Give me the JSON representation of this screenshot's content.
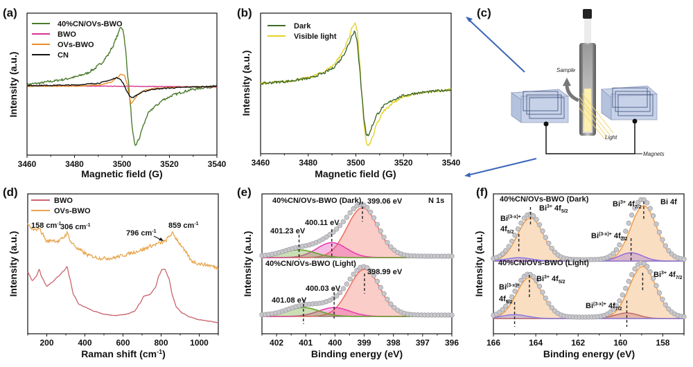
{
  "figure": {
    "panels": [
      "(a)",
      "(b)",
      "(c)",
      "(d)",
      "(e)",
      "(f)"
    ]
  },
  "chart_data": [
    {
      "id": "a",
      "type": "line",
      "panel_label": "(a)",
      "title": "",
      "xlabel": "Magnetic field (G)",
      "ylabel": "Intensity (a.u.)",
      "xlim": [
        3460,
        3540
      ],
      "ylim": [
        -1.15,
        1.2
      ],
      "xticks": [
        3460,
        3480,
        3500,
        3520,
        3540
      ],
      "grid": false,
      "legend_position": "top-left",
      "series": [
        {
          "name": "40%CN/OVs-BWO",
          "color": "#4a7a2c",
          "x": [
            3460,
            3465,
            3470,
            3475,
            3480,
            3485,
            3488,
            3491,
            3494,
            3496,
            3498,
            3499.5,
            3500.5,
            3501.5,
            3502.5,
            3503.5,
            3504.5,
            3505.5,
            3507,
            3509,
            3511,
            3514,
            3518,
            3522,
            3526,
            3530,
            3535,
            3540
          ],
          "y": [
            0.02,
            0.04,
            0.07,
            0.1,
            0.14,
            0.2,
            0.27,
            0.36,
            0.5,
            0.64,
            0.82,
            0.98,
            0.92,
            0.6,
            0.15,
            -0.3,
            -0.78,
            -1.0,
            -0.9,
            -0.66,
            -0.46,
            -0.34,
            -0.22,
            -0.15,
            -0.1,
            -0.06,
            -0.03,
            -0.01
          ],
          "noise": 0.02
        },
        {
          "name": "BWO",
          "color": "#d6338c",
          "x": [
            3460,
            3500,
            3540
          ],
          "y": [
            0.0,
            -0.01,
            -0.02
          ],
          "noise": 0.004
        },
        {
          "name": "OVs-BWO",
          "color": "#e8902a",
          "x": [
            3460,
            3480,
            3490,
            3495,
            3498,
            3499.5,
            3501,
            3502,
            3503,
            3503.8,
            3505,
            3507,
            3510,
            3515,
            3520,
            3530,
            3540
          ],
          "y": [
            -0.01,
            -0.01,
            0.01,
            0.05,
            0.13,
            0.19,
            0.17,
            0.05,
            -0.15,
            -0.3,
            -0.24,
            -0.13,
            -0.07,
            -0.04,
            -0.03,
            -0.02,
            -0.01
          ],
          "noise": 0.006
        },
        {
          "name": "CN",
          "color": "#111111",
          "x": [
            3460,
            3480,
            3490,
            3495,
            3497.5,
            3499,
            3500.5,
            3502,
            3503.5,
            3504.5,
            3506,
            3509,
            3513,
            3520,
            3530,
            3540
          ],
          "y": [
            0.0,
            0.01,
            0.04,
            0.09,
            0.13,
            0.12,
            0.04,
            -0.09,
            -0.18,
            -0.2,
            -0.16,
            -0.1,
            -0.06,
            -0.04,
            -0.02,
            -0.01
          ],
          "noise": 0.008
        }
      ]
    },
    {
      "id": "b",
      "type": "line",
      "panel_label": "(b)",
      "title": "",
      "xlabel": "Magnetic field (G)",
      "ylabel": "Intensity (a.u.)",
      "xlim": [
        3460,
        3540
      ],
      "ylim": [
        -1.15,
        1.15
      ],
      "xticks": [
        3460,
        3480,
        3500,
        3520,
        3540
      ],
      "grid": false,
      "legend_position": "top-left",
      "series": [
        {
          "name": "Dark",
          "color": "#3e6b2a",
          "x": [
            3460,
            3470,
            3480,
            3486,
            3490,
            3493,
            3495,
            3497,
            3498.5,
            3499.5,
            3500.5,
            3501.5,
            3502.5,
            3503.5,
            3504.5,
            3505.5,
            3507,
            3509,
            3512,
            3516,
            3520,
            3525,
            3530,
            3535,
            3540
          ],
          "y": [
            0.0,
            0.03,
            0.08,
            0.16,
            0.24,
            0.36,
            0.48,
            0.64,
            0.8,
            0.86,
            0.7,
            0.3,
            -0.2,
            -0.6,
            -0.85,
            -0.84,
            -0.68,
            -0.5,
            -0.36,
            -0.26,
            -0.2,
            -0.16,
            -0.14,
            -0.12,
            -0.1
          ],
          "noise": 0.02
        },
        {
          "name": "Visible light",
          "color": "#e6d22a",
          "x": [
            3460,
            3470,
            3480,
            3486,
            3490,
            3493,
            3495,
            3497,
            3498.5,
            3499.6,
            3500.6,
            3501.5,
            3502.5,
            3503.5,
            3504.5,
            3505.5,
            3507,
            3509,
            3512,
            3516,
            3520,
            3525,
            3530,
            3535,
            3540
          ],
          "y": [
            0.0,
            0.03,
            0.09,
            0.18,
            0.28,
            0.42,
            0.56,
            0.74,
            0.92,
            1.0,
            0.85,
            0.4,
            -0.2,
            -0.7,
            -1.0,
            -1.02,
            -0.88,
            -0.64,
            -0.44,
            -0.3,
            -0.22,
            -0.17,
            -0.14,
            -0.12,
            -0.1
          ],
          "noise": 0.02
        }
      ]
    },
    {
      "id": "d",
      "type": "line",
      "panel_label": "(d)",
      "title": "",
      "xlabel": "Raman shift (cm-1)",
      "ylabel": "Intensity (a.u.)",
      "xlim": [
        100,
        1100
      ],
      "ylim": [
        0,
        1
      ],
      "xticks": [
        200,
        400,
        600,
        800,
        1000
      ],
      "grid": false,
      "legend_position": "top-left",
      "series": [
        {
          "name": "BWO",
          "color": "#c8636e",
          "x": [
            100,
            125,
            145,
            160,
            175,
            200,
            230,
            260,
            290,
            306,
            320,
            340,
            370,
            400,
            450,
            500,
            560,
            620,
            660,
            690,
            710,
            740,
            770,
            790,
            805,
            820,
            840,
            860,
            880,
            910,
            950,
            1000,
            1050,
            1100
          ],
          "y": [
            0.44,
            0.38,
            0.41,
            0.46,
            0.4,
            0.34,
            0.37,
            0.41,
            0.45,
            0.48,
            0.4,
            0.28,
            0.21,
            0.19,
            0.16,
            0.14,
            0.13,
            0.14,
            0.16,
            0.22,
            0.27,
            0.28,
            0.33,
            0.42,
            0.46,
            0.46,
            0.4,
            0.27,
            0.19,
            0.15,
            0.12,
            0.1,
            0.09,
            0.08
          ],
          "noise": 0.002
        },
        {
          "name": "OVs-BWO",
          "color": "#e8a54c",
          "x": [
            100,
            120,
            140,
            158,
            175,
            200,
            230,
            260,
            290,
            306,
            330,
            370,
            420,
            480,
            540,
            600,
            650,
            700,
            750,
            796,
            820,
            845,
            859,
            880,
            900,
            930,
            960,
            1000,
            1050,
            1100
          ],
          "y": [
            0.78,
            0.75,
            0.74,
            0.76,
            0.72,
            0.66,
            0.67,
            0.66,
            0.69,
            0.72,
            0.65,
            0.6,
            0.56,
            0.54,
            0.54,
            0.56,
            0.58,
            0.6,
            0.63,
            0.65,
            0.66,
            0.7,
            0.72,
            0.68,
            0.64,
            0.58,
            0.52,
            0.5,
            0.49,
            0.47
          ],
          "noise": 0.012
        }
      ],
      "annotations": [
        "158 cm-1",
        "306 cm-1",
        "796 cm-1",
        "859 cm-1"
      ]
    },
    {
      "id": "e",
      "type": "area",
      "panel_label": "(e)",
      "title": "N 1s",
      "xlabel": "Binding energy (eV)",
      "ylabel": "Intensity (a.u.)",
      "xlim": [
        402.5,
        396
      ],
      "xticks": [
        402,
        401,
        400,
        399,
        398,
        397,
        396
      ],
      "grid": false,
      "subplots": [
        {
          "label": "40%CN/OVs-BWO (Dark)",
          "peaks": [
            {
              "center": 399.06,
              "label": "399.06 eV",
              "amp": 0.9,
              "fwhm": 1.25,
              "color": "#f07060"
            },
            {
              "center": 400.11,
              "label": "400.11 eV",
              "amp": 0.27,
              "fwhm": 1.2,
              "color": "#e83fb0"
            },
            {
              "center": 401.23,
              "label": "401.23 eV",
              "amp": 0.14,
              "fwhm": 1.3,
              "color": "#6aa32a"
            }
          ]
        },
        {
          "label": "40%CN/OVs-BWO (Light)",
          "peaks": [
            {
              "center": 398.99,
              "label": "398.99 eV",
              "amp": 0.85,
              "fwhm": 1.25,
              "color": "#f07060"
            },
            {
              "center": 400.03,
              "label": "400.03 eV",
              "amp": 0.16,
              "fwhm": 1.25,
              "color": "#e83fb0"
            },
            {
              "center": 401.08,
              "label": "401.08 eV",
              "amp": 0.16,
              "fwhm": 1.3,
              "color": "#6aa32a"
            }
          ]
        }
      ]
    },
    {
      "id": "f",
      "type": "area",
      "panel_label": "(f)",
      "title": "Bi 4f",
      "xlabel": "Binding energy (eV)",
      "ylabel": "Intensity (a.u.)",
      "xlim": [
        166,
        157
      ],
      "xticks": [
        166,
        164,
        162,
        160,
        158
      ],
      "grid": false,
      "subplots": [
        {
          "label": "40%CN/OVs-BWO (Dark)",
          "peaks": [
            {
              "center": 164.25,
              "label": "Bi3+ 4f5/2",
              "amp": 0.78,
              "fwhm": 1.45,
              "color": "#f0a050"
            },
            {
              "center": 164.8,
              "label": "Bi(3-x)+ 4f5/2",
              "amp": 0.06,
              "fwhm": 1.4,
              "color": "#8c7ce0"
            },
            {
              "center": 158.9,
              "label": "Bi3+ 4f7/2",
              "amp": 1.0,
              "fwhm": 1.45,
              "color": "#f0a050"
            },
            {
              "center": 159.5,
              "label": "Bi(3-x)+ 4f7/2",
              "amp": 0.15,
              "fwhm": 1.3,
              "color": "#9a70d8"
            }
          ]
        },
        {
          "label": "40%CN/OVs-BWO (Light)",
          "peaks": [
            {
              "center": 164.3,
              "label": "Bi3+ 4f5/2",
              "amp": 0.74,
              "fwhm": 1.45,
              "color": "#f0a050"
            },
            {
              "center": 165.0,
              "label": "Bi(3-x)+ 4f5/2",
              "amp": 0.07,
              "fwhm": 1.4,
              "color": "#8c7ce0"
            },
            {
              "center": 158.95,
              "label": "Bi3+ 4f7/2",
              "amp": 0.94,
              "fwhm": 1.5,
              "color": "#f0a050"
            },
            {
              "center": 159.7,
              "label": "Bi(3-x)+ 4f7/2",
              "amp": 0.1,
              "fwhm": 1.3,
              "color": "#c07070"
            }
          ]
        }
      ]
    }
  ],
  "schematic": {
    "panel_label": "(c)",
    "labels": {
      "sample": "Sample",
      "light": "Light",
      "magnets": "Magnets"
    }
  },
  "text": {
    "a_legend": [
      "40%CN/OVs-BWO",
      "BWO",
      "OVs-BWO",
      "CN"
    ],
    "b_legend": [
      "Dark",
      "Visible light"
    ],
    "d_legend": [
      "BWO",
      "OVs-BWO"
    ],
    "d_annot": {
      "p158": "158 cm",
      "p306": "306 cm",
      "p796": "796 cm",
      "p859": "859 cm",
      "sup": "-1"
    },
    "e": {
      "title": "N 1s",
      "dark": "40%CN/OVs-BWO (Dark)",
      "light": "40%CN/OVs-BWO (Light)",
      "d1": "399.06 eV",
      "d2": "400.11 eV",
      "d3": "401.23 eV",
      "l1": "398.99 eV",
      "l2": "400.03 eV",
      "l3": "401.08 eV"
    },
    "f": {
      "title": "Bi 4f",
      "dark": "40%CN/OVs-BWO (Dark)",
      "light": "40%CN/OVs-BWO (Light)"
    },
    "ylabel": "Intensity (a.u.)",
    "xlabel_mag": "Magnetic field (G)",
    "xlabel_raman": "Raman shift (cm",
    "xlabel_raman_sup": "-1",
    "xlabel_raman_end": ")",
    "xlabel_be": "Binding energy (eV)"
  }
}
